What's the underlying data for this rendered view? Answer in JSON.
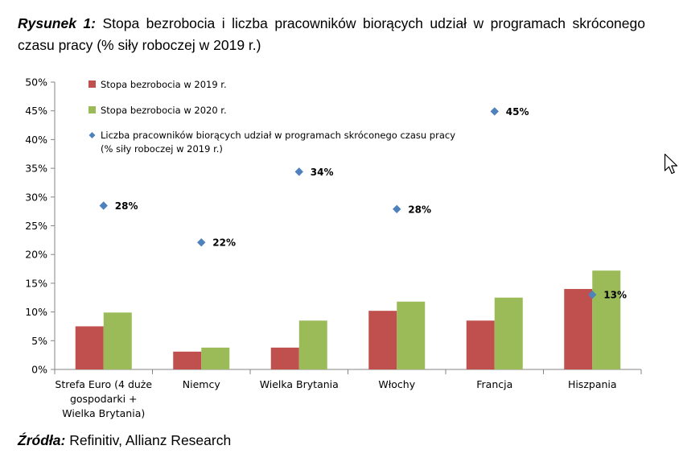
{
  "caption": {
    "label": "Rysunek 1:",
    "text": "Stopa bezrobocia i liczba pracowników biorących udział w programach skróconego czasu pracy (% siły roboczej w 2019 r.)"
  },
  "source": {
    "label": "Źródła:",
    "text": "Refinitiv, Allianz Research"
  },
  "chart_data": {
    "type": "bar",
    "title": "",
    "xlabel": "",
    "ylabel": "",
    "ylim": [
      0,
      50
    ],
    "yticks": [
      0,
      5,
      10,
      15,
      20,
      25,
      30,
      35,
      40,
      45,
      50
    ],
    "ytick_labels": [
      "0%",
      "5%",
      "10%",
      "15%",
      "20%",
      "25%",
      "30%",
      "35%",
      "40%",
      "45%",
      "50%"
    ],
    "grid": false,
    "legend_position": "top-left",
    "categories": [
      [
        "Strefa Euro (4 duże",
        "gospodarki +",
        "Wielka Brytania)"
      ],
      [
        "Niemcy"
      ],
      [
        "Wielka Brytania"
      ],
      [
        "Włochy"
      ],
      [
        "Francja"
      ],
      [
        "Hiszpania"
      ]
    ],
    "series": [
      {
        "name": "Stopa bezrobocia w 2019 r.",
        "kind": "bar",
        "color": "#C0504D",
        "values": [
          7.5,
          3.1,
          3.8,
          10.2,
          8.5,
          14.0
        ]
      },
      {
        "name": "Stopa bezrobocia w 2020 r.",
        "kind": "bar",
        "color": "#9BBB59",
        "values": [
          9.9,
          3.8,
          8.5,
          11.8,
          12.5,
          17.2
        ]
      },
      {
        "name": "Liczba pracowników biorących udział w programach skróconego czasu pracy",
        "name_line2": "(% siły roboczej w 2019 r.)",
        "kind": "scatter",
        "color": "#4F81BD",
        "values": [
          28.5,
          22.1,
          34.4,
          27.9,
          44.9,
          13.0
        ],
        "labels": [
          "28%",
          "22%",
          "34%",
          "28%",
          "45%",
          "13%"
        ]
      }
    ]
  }
}
